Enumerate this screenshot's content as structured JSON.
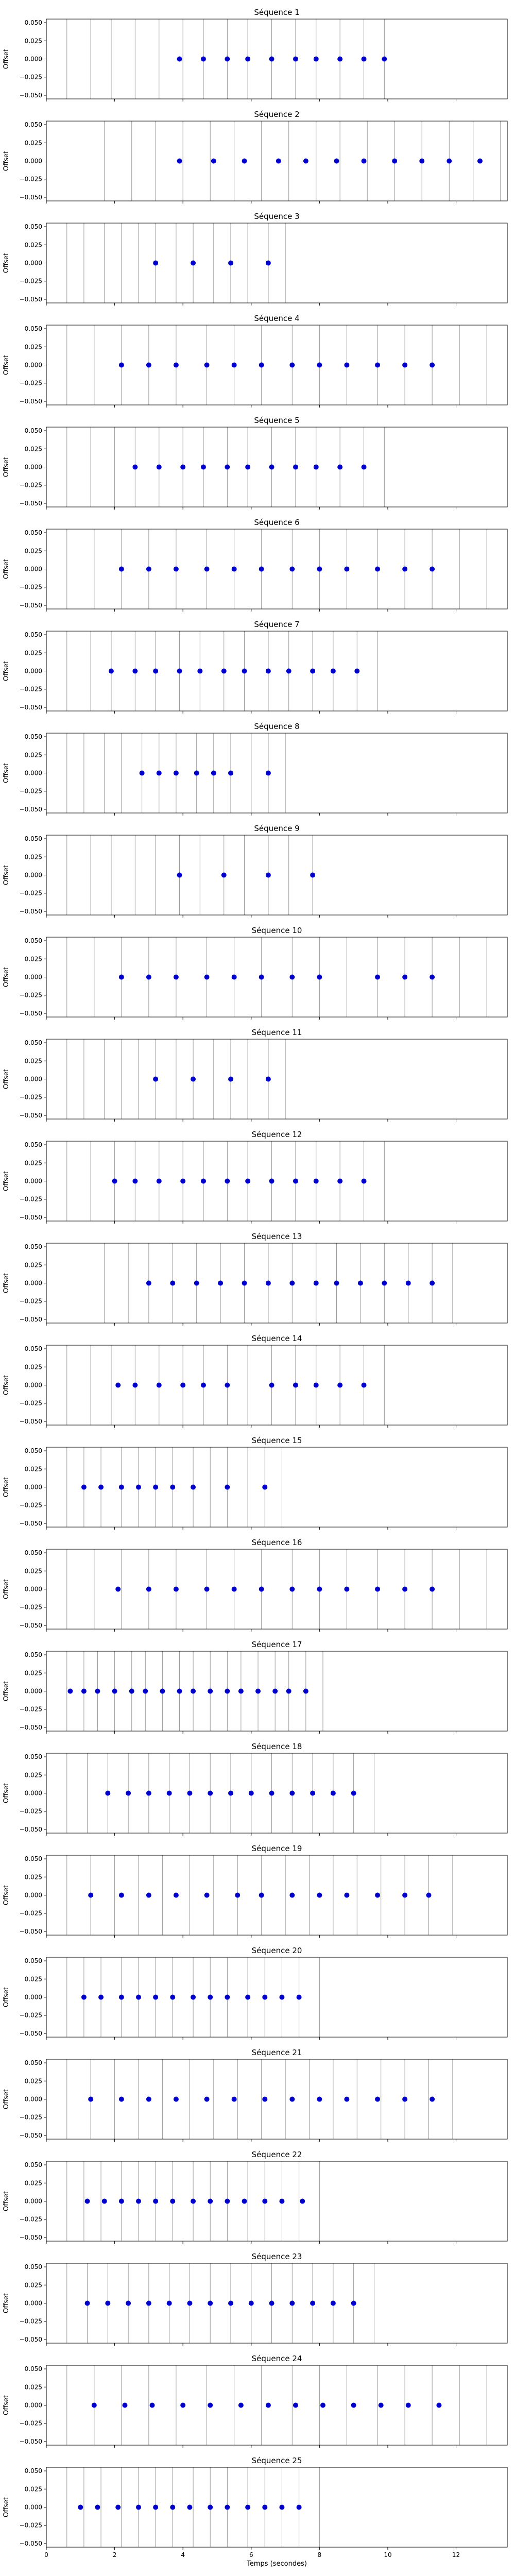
{
  "figure": {
    "xlabel": "Temps (secondes)",
    "ylabel": "Offset",
    "xlim": [
      0,
      13.5
    ],
    "ylim": [
      -0.055,
      0.055
    ],
    "x_ticks": [
      0,
      2,
      4,
      6,
      8,
      10,
      12
    ],
    "y_ticks": [
      0.05,
      0.025,
      0.0,
      -0.025,
      -0.05
    ],
    "y_tick_labels": [
      "0.050",
      "0.025",
      "0.000",
      "−0.025",
      "−0.050"
    ],
    "point_color": "#0000cc",
    "line_color": "#999999"
  },
  "chart_data": [
    {
      "type": "scatter",
      "title": "Séquence 1",
      "lines": [
        0.6,
        1.3,
        1.9,
        2.6,
        3.3,
        4.0,
        4.6,
        5.3,
        5.9,
        6.6,
        7.3,
        7.9,
        8.6,
        9.3,
        9.9
      ],
      "points": [
        3.9,
        4.6,
        5.3,
        5.9,
        6.6,
        7.3,
        7.9,
        8.6,
        9.3,
        9.9
      ]
    },
    {
      "type": "scatter",
      "title": "Séquence 2",
      "lines": [
        1.7,
        2.5,
        3.2,
        4.0,
        4.8,
        5.5,
        6.3,
        7.1,
        7.9,
        8.6,
        9.4,
        10.2,
        11.0,
        11.8,
        12.5,
        13.3
      ],
      "points": [
        3.9,
        4.9,
        5.8,
        6.8,
        7.6,
        8.5,
        9.3,
        10.2,
        11.0,
        11.8,
        12.7
      ]
    },
    {
      "type": "scatter",
      "title": "Séquence 3",
      "lines": [
        0.6,
        1.1,
        1.7,
        2.2,
        2.7,
        3.2,
        3.8,
        4.3,
        4.9,
        5.4,
        5.9,
        6.5,
        7.0
      ],
      "points": [
        3.2,
        4.3,
        5.4,
        6.5
      ]
    },
    {
      "type": "scatter",
      "title": "Séquence 4",
      "lines": [
        0.6,
        1.4,
        2.2,
        3.0,
        3.8,
        4.7,
        5.5,
        6.3,
        7.2,
        8.0,
        8.8,
        9.7,
        10.5,
        11.3,
        12.1,
        12.9
      ],
      "points": [
        2.2,
        3.0,
        3.8,
        4.7,
        5.5,
        6.3,
        7.2,
        8.0,
        8.8,
        9.7,
        10.5,
        11.3
      ]
    },
    {
      "type": "scatter",
      "title": "Séquence 5",
      "lines": [
        0.6,
        1.3,
        2.0,
        2.6,
        3.3,
        4.0,
        4.6,
        5.3,
        5.9,
        6.6,
        7.3,
        7.9,
        8.6,
        9.3,
        9.9
      ],
      "points": [
        2.6,
        3.3,
        4.0,
        4.6,
        5.3,
        5.9,
        6.6,
        7.3,
        7.9,
        8.6,
        9.3
      ]
    },
    {
      "type": "scatter",
      "title": "Séquence 6",
      "lines": [
        0.6,
        1.4,
        2.2,
        3.0,
        3.8,
        4.7,
        5.5,
        6.3,
        7.2,
        8.0,
        8.8,
        9.7,
        10.5,
        11.3,
        12.1,
        12.9
      ],
      "points": [
        2.2,
        3.0,
        3.8,
        4.7,
        5.5,
        6.3,
        7.2,
        8.0,
        8.8,
        9.7,
        10.5,
        11.3
      ]
    },
    {
      "type": "scatter",
      "title": "Séquence 7",
      "lines": [
        0.6,
        1.3,
        1.9,
        2.6,
        3.2,
        3.9,
        4.5,
        5.2,
        5.8,
        6.5,
        7.1,
        7.8,
        8.4,
        9.1,
        9.7
      ],
      "points": [
        1.9,
        2.6,
        3.2,
        3.9,
        4.5,
        5.2,
        5.8,
        6.5,
        7.1,
        7.8,
        8.4,
        9.1
      ]
    },
    {
      "type": "scatter",
      "title": "Séquence 8",
      "lines": [
        0.6,
        1.1,
        1.7,
        2.2,
        2.8,
        3.3,
        3.8,
        4.4,
        4.9,
        5.4,
        6.0,
        6.5,
        7.0
      ],
      "points": [
        2.8,
        3.3,
        3.8,
        4.4,
        4.9,
        5.4,
        6.5
      ]
    },
    {
      "type": "scatter",
      "title": "Séquence 9",
      "lines": [
        0.6,
        1.3,
        1.9,
        2.6,
        3.2,
        3.9,
        4.5,
        5.2,
        5.8,
        6.5,
        7.1,
        7.8
      ],
      "points": [
        3.9,
        5.2,
        6.5,
        7.8
      ]
    },
    {
      "type": "scatter",
      "title": "Séquence 10",
      "lines": [
        0.6,
        1.4,
        2.2,
        3.0,
        3.8,
        4.7,
        5.5,
        6.3,
        7.2,
        8.0,
        8.8,
        9.7,
        10.5,
        11.3,
        12.1,
        12.9
      ],
      "points": [
        2.2,
        3.0,
        3.8,
        4.7,
        5.5,
        6.3,
        7.2,
        8.0,
        9.7,
        10.5,
        11.3
      ]
    },
    {
      "type": "scatter",
      "title": "Séquence 11",
      "lines": [
        0.6,
        1.1,
        1.7,
        2.2,
        2.7,
        3.2,
        3.8,
        4.3,
        4.9,
        5.4,
        5.9,
        6.5,
        7.0
      ],
      "points": [
        3.2,
        4.3,
        5.4,
        6.5
      ]
    },
    {
      "type": "scatter",
      "title": "Séquence 12",
      "lines": [
        0.6,
        1.3,
        2.0,
        2.6,
        3.3,
        4.0,
        4.6,
        5.3,
        5.9,
        6.6,
        7.3,
        7.9,
        8.6,
        9.3,
        9.9
      ],
      "points": [
        2.0,
        2.6,
        3.3,
        4.0,
        4.6,
        5.3,
        5.9,
        6.6,
        7.3,
        7.9,
        8.6,
        9.3
      ]
    },
    {
      "type": "scatter",
      "title": "Séquence 13",
      "lines": [
        1.7,
        2.4,
        3.0,
        3.7,
        4.4,
        5.1,
        5.8,
        6.5,
        7.2,
        7.9,
        8.5,
        9.2,
        9.9,
        10.6,
        11.3,
        11.9
      ],
      "points": [
        3.0,
        3.7,
        4.4,
        5.1,
        5.8,
        6.5,
        7.2,
        7.9,
        8.5,
        9.2,
        9.9,
        10.6,
        11.3
      ]
    },
    {
      "type": "scatter",
      "title": "Séquence 14",
      "lines": [
        0.6,
        1.3,
        1.9,
        2.6,
        3.3,
        4.0,
        4.6,
        5.3,
        5.9,
        6.6,
        7.3,
        7.9,
        8.6,
        9.3,
        9.9
      ],
      "points": [
        2.1,
        2.6,
        3.3,
        4.0,
        4.6,
        5.3,
        6.6,
        7.3,
        7.9,
        8.6,
        9.3
      ]
    },
    {
      "type": "scatter",
      "title": "Séquence 15",
      "lines": [
        0.6,
        1.1,
        1.6,
        2.2,
        2.7,
        3.2,
        3.7,
        4.3,
        4.8,
        5.3,
        5.9,
        6.4,
        6.9
      ],
      "points": [
        1.1,
        1.6,
        2.2,
        2.7,
        3.2,
        3.7,
        4.3,
        5.3,
        6.4
      ]
    },
    {
      "type": "scatter",
      "title": "Séquence 16",
      "lines": [
        0.6,
        1.4,
        2.2,
        3.0,
        3.8,
        4.7,
        5.5,
        6.3,
        7.2,
        8.0,
        8.8,
        9.7,
        10.5,
        11.3,
        12.1,
        12.9
      ],
      "points": [
        2.1,
        3.0,
        3.8,
        4.7,
        5.5,
        6.3,
        7.2,
        8.0,
        8.8,
        9.7,
        10.5,
        11.3
      ]
    },
    {
      "type": "scatter",
      "title": "Séquence 17",
      "lines": [
        0.6,
        1.1,
        1.5,
        2.0,
        2.5,
        2.9,
        3.4,
        3.9,
        4.3,
        4.8,
        5.3,
        5.7,
        6.2,
        6.7,
        7.1,
        7.6,
        8.1
      ],
      "points": [
        0.7,
        1.1,
        1.5,
        2.0,
        2.5,
        2.9,
        3.4,
        3.9,
        4.3,
        4.8,
        5.3,
        5.7,
        6.2,
        6.7,
        7.1,
        7.6
      ]
    },
    {
      "type": "scatter",
      "title": "Séquence 18",
      "lines": [
        0.6,
        1.2,
        1.8,
        2.4,
        3.0,
        3.6,
        4.2,
        4.8,
        5.4,
        6.0,
        6.6,
        7.2,
        7.8,
        8.4,
        9.0,
        9.6
      ],
      "points": [
        1.8,
        2.4,
        3.0,
        3.6,
        4.2,
        4.8,
        5.4,
        6.0,
        6.6,
        7.2,
        7.8,
        8.4,
        9.0
      ]
    },
    {
      "type": "scatter",
      "title": "Séquence 19",
      "lines": [
        0.6,
        1.3,
        2.0,
        2.7,
        3.4,
        4.2,
        4.9,
        5.6,
        6.3,
        7.0,
        7.7,
        8.4,
        9.1,
        9.8,
        10.5,
        11.2,
        11.9
      ],
      "points": [
        1.3,
        2.2,
        3.0,
        3.8,
        4.7,
        5.6,
        6.3,
        7.2,
        8.0,
        8.8,
        9.7,
        10.5,
        11.2
      ]
    },
    {
      "type": "scatter",
      "title": "Séquence 20",
      "lines": [
        0.6,
        1.1,
        1.6,
        2.2,
        2.7,
        3.2,
        3.7,
        4.3,
        4.8,
        5.3,
        5.9,
        6.4,
        6.9,
        7.4,
        8.0
      ],
      "points": [
        1.1,
        1.6,
        2.2,
        2.7,
        3.2,
        3.7,
        4.3,
        4.8,
        5.3,
        5.9,
        6.4,
        6.9,
        7.4
      ]
    },
    {
      "type": "scatter",
      "title": "Séquence 21",
      "lines": [
        0.6,
        1.3,
        2.0,
        2.7,
        3.4,
        4.2,
        4.9,
        5.6,
        6.3,
        7.0,
        7.7,
        8.4,
        9.1,
        9.8,
        10.5,
        11.2,
        11.9
      ],
      "points": [
        1.3,
        2.2,
        3.0,
        3.8,
        4.7,
        5.5,
        6.4,
        7.2,
        8.0,
        8.8,
        9.7,
        10.5,
        11.3
      ]
    },
    {
      "type": "scatter",
      "title": "Séquence 22",
      "lines": [
        0.6,
        1.1,
        1.6,
        2.2,
        2.7,
        3.2,
        3.7,
        4.3,
        4.8,
        5.3,
        5.9,
        6.4,
        6.9,
        7.4,
        8.0
      ],
      "points": [
        1.2,
        1.7,
        2.2,
        2.7,
        3.2,
        3.7,
        4.3,
        4.8,
        5.3,
        5.8,
        6.4,
        6.9,
        7.5
      ]
    },
    {
      "type": "scatter",
      "title": "Séquence 23",
      "lines": [
        0.6,
        1.2,
        1.8,
        2.4,
        3.0,
        3.6,
        4.2,
        4.8,
        5.4,
        6.0,
        6.6,
        7.2,
        7.8,
        8.4,
        9.0,
        9.6
      ],
      "points": [
        1.2,
        1.8,
        2.4,
        3.0,
        3.6,
        4.2,
        4.8,
        5.4,
        6.0,
        6.6,
        7.2,
        7.8,
        8.4,
        9.0
      ]
    },
    {
      "type": "scatter",
      "title": "Séquence 24",
      "lines": [
        0.6,
        1.4,
        2.2,
        3.0,
        3.8,
        4.7,
        5.5,
        6.3,
        7.2,
        8.0,
        8.8,
        9.7,
        10.5,
        11.3,
        12.1,
        12.9
      ],
      "points": [
        1.4,
        2.3,
        3.1,
        4.0,
        4.8,
        5.7,
        6.5,
        7.3,
        8.1,
        9.0,
        9.8,
        10.6,
        11.5
      ]
    },
    {
      "type": "scatter",
      "title": "Séquence 25",
      "lines": [
        0.6,
        1.1,
        1.6,
        2.2,
        2.7,
        3.2,
        3.7,
        4.3,
        4.8,
        5.3,
        5.9,
        6.4,
        6.9,
        7.4,
        8.0
      ],
      "points": [
        1.0,
        1.5,
        2.1,
        2.7,
        3.2,
        3.7,
        4.2,
        4.8,
        5.3,
        5.9,
        6.4,
        6.9,
        7.4
      ]
    }
  ]
}
